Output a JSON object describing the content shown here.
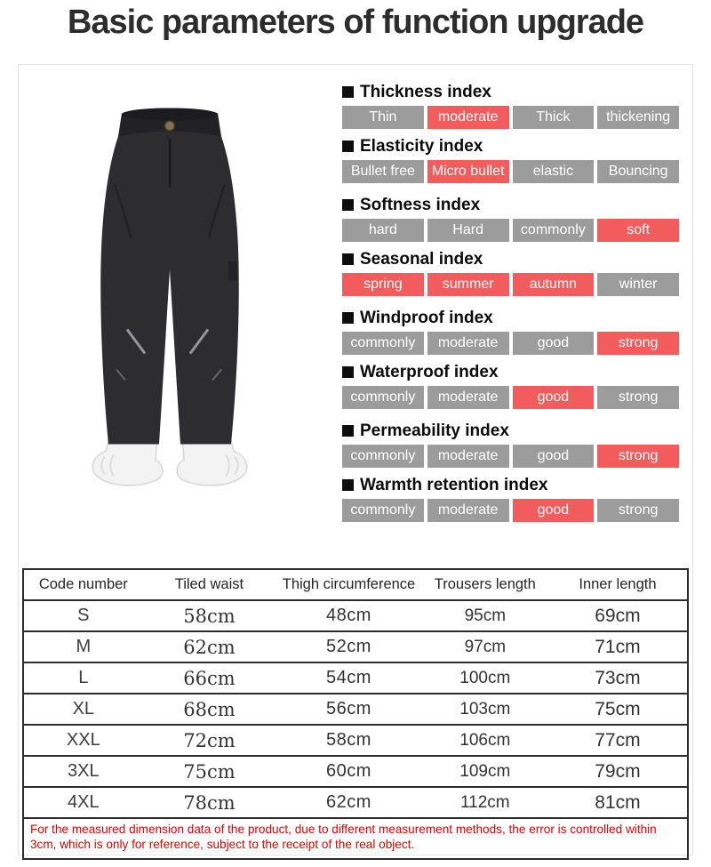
{
  "title": "Basic parameters of function upgrade",
  "colors": {
    "highlight": "#f25c5c",
    "bar_gray": "#9c9c9c",
    "disclaimer_red": "#e60000",
    "heading_text": "#0d0d0d",
    "bar_text": "#ffffff"
  },
  "indexes": [
    {
      "label": "Thickness index",
      "options": [
        {
          "label": "Thin",
          "active": false
        },
        {
          "label": "moderate",
          "active": true
        },
        {
          "label": "Thick",
          "active": false
        },
        {
          "label": "thickening",
          "active": false
        }
      ]
    },
    {
      "label": "Elasticity index",
      "options": [
        {
          "label": "Bullet free",
          "active": false
        },
        {
          "label": "Micro bullet",
          "active": true
        },
        {
          "label": "elastic",
          "active": false
        },
        {
          "label": "Bouncing",
          "active": false
        }
      ]
    },
    {
      "label": "Softness index",
      "options": [
        {
          "label": "hard",
          "active": false
        },
        {
          "label": "Hard",
          "active": false
        },
        {
          "label": "commonly",
          "active": false
        },
        {
          "label": "soft",
          "active": true
        }
      ]
    },
    {
      "label": "Seasonal index",
      "options": [
        {
          "label": "spring",
          "active": true
        },
        {
          "label": "summer",
          "active": true
        },
        {
          "label": "autumn",
          "active": true
        },
        {
          "label": "winter",
          "active": false
        }
      ]
    },
    {
      "label": "Windproof index",
      "options": [
        {
          "label": "commonly",
          "active": false
        },
        {
          "label": "moderate",
          "active": false
        },
        {
          "label": "good",
          "active": false
        },
        {
          "label": "strong",
          "active": true
        }
      ]
    },
    {
      "label": "Waterproof index",
      "options": [
        {
          "label": "commonly",
          "active": false
        },
        {
          "label": "moderate",
          "active": false
        },
        {
          "label": "good",
          "active": true
        },
        {
          "label": "strong",
          "active": false
        }
      ]
    },
    {
      "label": "Permeability index",
      "options": [
        {
          "label": "commonly",
          "active": false
        },
        {
          "label": "moderate",
          "active": false
        },
        {
          "label": "good",
          "active": false
        },
        {
          "label": "strong",
          "active": true
        }
      ]
    },
    {
      "label": "Warmth retention index",
      "options": [
        {
          "label": "commonly",
          "active": false
        },
        {
          "label": "moderate",
          "active": false
        },
        {
          "label": "good",
          "active": true
        },
        {
          "label": "strong",
          "active": false
        }
      ]
    }
  ],
  "size_table": {
    "headers": [
      "Code number",
      "Tiled waist",
      "Thigh circumference",
      "Trousers length",
      "Inner length"
    ],
    "rows": [
      [
        "S",
        "58cm",
        "48cm",
        "95cm",
        "69cm"
      ],
      [
        "M",
        "62cm",
        "52cm",
        "97cm",
        "71cm"
      ],
      [
        "L",
        "66cm",
        "54cm",
        "100cm",
        "73cm"
      ],
      [
        "XL",
        "68cm",
        "56cm",
        "103cm",
        "75cm"
      ],
      [
        "XXL",
        "72cm",
        "58cm",
        "106cm",
        "77cm"
      ],
      [
        "3XL",
        "75cm",
        "60cm",
        "109cm",
        "79cm"
      ],
      [
        "4XL",
        "78cm",
        "62cm",
        "112cm",
        "81cm"
      ]
    ],
    "disclaimer": "For the measured dimension data of the product, due to different measurement methods, the error is controlled within 3cm, which is only for reference, subject to the receipt of the real object."
  }
}
